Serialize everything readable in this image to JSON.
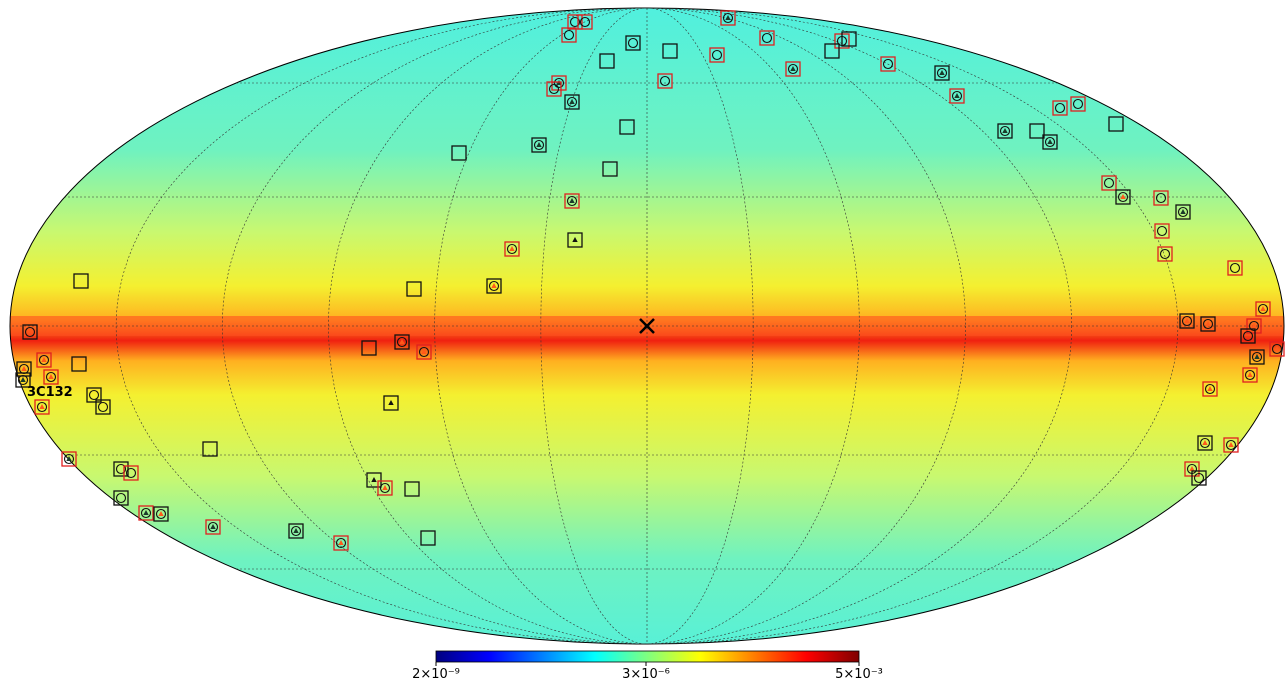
{
  "map": {
    "source_label": "3C132",
    "colorbar": {
      "scale": "log",
      "lim": [
        2e-09,
        0.005
      ],
      "colors": [
        "#00007f",
        "#0000ff",
        "#007fff",
        "#00ffff",
        "#7fff7f",
        "#ffff00",
        "#ff7f00",
        "#ff0000",
        "#7f0000"
      ],
      "ticks": [
        {
          "value": 2e-09,
          "label": "2×10⁻⁹"
        },
        {
          "value": 3e-06,
          "label": "3×10⁻⁶"
        },
        {
          "value": 0.005,
          "label": "5×10⁻³"
        }
      ]
    }
  }
}
